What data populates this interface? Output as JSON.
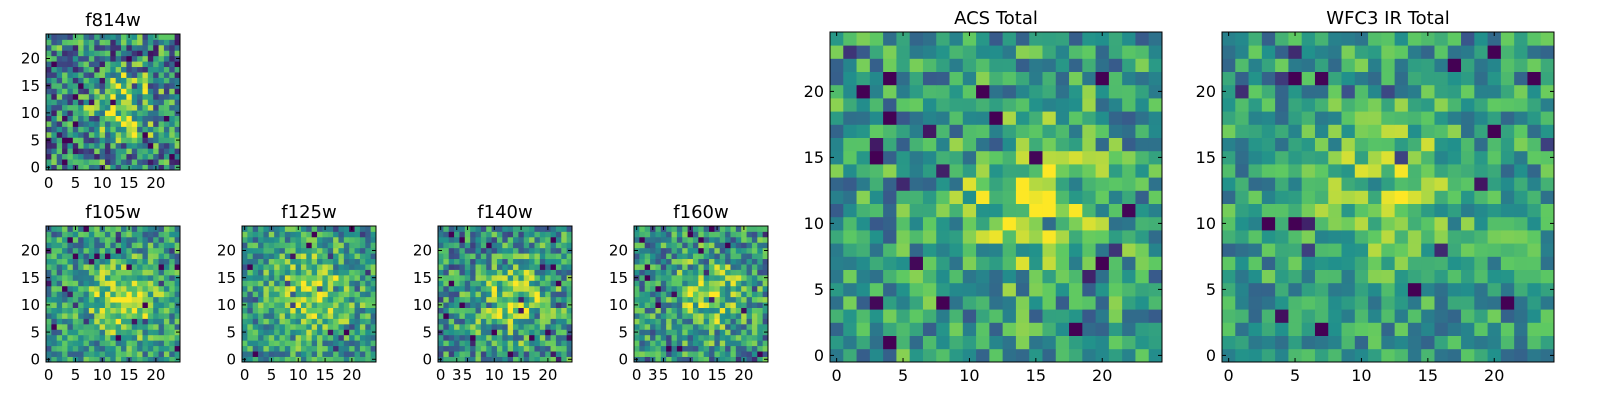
{
  "figure": {
    "colormap": [
      "#440154",
      "#3b528b",
      "#21918c",
      "#5ec962",
      "#fde725"
    ]
  },
  "chart_data": [
    {
      "type": "heatmap",
      "id": "f814w",
      "title": "f814w",
      "grid": [
        25,
        25
      ],
      "xlim": [
        0,
        24
      ],
      "ylim": [
        0,
        24
      ],
      "xticks": [
        0,
        5,
        10,
        15,
        20
      ],
      "yticks": [
        0,
        5,
        10,
        15,
        20
      ],
      "peak": {
        "x": 14,
        "y": 11,
        "spread": 4.0,
        "amp": 0.45
      },
      "base": 0.45,
      "noise": 0.5,
      "seed": 814
    },
    {
      "type": "heatmap",
      "id": "f105w",
      "title": "f105w",
      "grid": [
        25,
        25
      ],
      "xlim": [
        0,
        24
      ],
      "ylim": [
        0,
        24
      ],
      "xticks": [
        0,
        5,
        10,
        15,
        20
      ],
      "yticks": [
        0,
        5,
        10,
        15,
        20
      ],
      "peak": {
        "x": 14,
        "y": 11,
        "spread": 5.0,
        "amp": 0.35
      },
      "base": 0.52,
      "noise": 0.35,
      "seed": 105
    },
    {
      "type": "heatmap",
      "id": "f125w",
      "title": "f125w",
      "grid": [
        25,
        25
      ],
      "xlim": [
        0,
        24
      ],
      "ylim": [
        0,
        24
      ],
      "xticks": [
        0,
        5,
        10,
        15,
        20
      ],
      "yticks": [
        0,
        5,
        10,
        15,
        20
      ],
      "peak": {
        "x": 13,
        "y": 12,
        "spread": 5.0,
        "amp": 0.3
      },
      "base": 0.55,
      "noise": 0.35,
      "seed": 125
    },
    {
      "type": "heatmap",
      "id": "f140w",
      "title": "f140w",
      "grid": [
        25,
        25
      ],
      "xlim": [
        0,
        24
      ],
      "ylim": [
        0,
        24
      ],
      "xticks": [
        0,
        3,
        5,
        10,
        15,
        20
      ],
      "yticks": [
        0,
        5,
        10,
        15,
        20
      ],
      "peak": {
        "x": 14,
        "y": 11,
        "spread": 5.0,
        "amp": 0.3
      },
      "base": 0.5,
      "noise": 0.4,
      "seed": 140
    },
    {
      "type": "heatmap",
      "id": "f160w",
      "title": "f160w",
      "grid": [
        25,
        25
      ],
      "xlim": [
        0,
        24
      ],
      "ylim": [
        0,
        24
      ],
      "xticks": [
        0,
        3,
        5,
        10,
        15,
        20
      ],
      "yticks": [
        0,
        5,
        10,
        15,
        20
      ],
      "peak": {
        "x": 14,
        "y": 12,
        "spread": 5.0,
        "amp": 0.3
      },
      "base": 0.5,
      "noise": 0.4,
      "seed": 160
    },
    {
      "type": "heatmap",
      "id": "acs_total",
      "title": "ACS Total",
      "grid": [
        25,
        25
      ],
      "xlim": [
        0,
        24
      ],
      "ylim": [
        0,
        24
      ],
      "xticks": [
        0,
        5,
        10,
        15,
        20
      ],
      "yticks": [
        0,
        5,
        10,
        15,
        20
      ],
      "peak": {
        "x": 15,
        "y": 12,
        "spread": 3.5,
        "amp": 0.35
      },
      "base": 0.55,
      "noise": 0.35,
      "seed": 7
    },
    {
      "type": "heatmap",
      "id": "wfc3_ir_total",
      "title": "WFC3 IR Total",
      "grid": [
        25,
        25
      ],
      "xlim": [
        0,
        24
      ],
      "ylim": [
        0,
        24
      ],
      "xticks": [
        0,
        5,
        10,
        15,
        20
      ],
      "yticks": [
        0,
        5,
        10,
        15,
        20
      ],
      "peak": {
        "x": 12,
        "y": 13,
        "spread": 4.0,
        "amp": 0.25
      },
      "base": 0.55,
      "noise": 0.3,
      "seed": 33
    }
  ]
}
